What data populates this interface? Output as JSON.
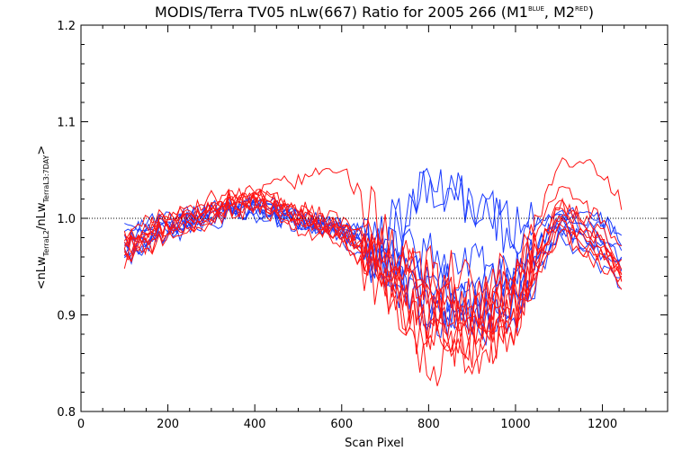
{
  "chart_data": {
    "type": "line",
    "title": {
      "main": "MODIS/Terra TV05 nLw(667) Ratio for 2005 266 (M1",
      "sup1": "BLUE",
      "mid": ", M2",
      "sup2": "RED",
      "end": ")"
    },
    "xlabel": "Scan Pixel",
    "ylabel": {
      "open": "<nLw",
      "sub1": "TerraL2",
      "mid": "/nLw",
      "sub2": "TerraL3:7DAY",
      "close": ">"
    },
    "xlim": [
      0,
      1350
    ],
    "ylim": [
      0.8,
      1.2
    ],
    "xticks": [
      0,
      200,
      400,
      600,
      800,
      1000,
      1200
    ],
    "yticks": [
      0.8,
      0.9,
      1.0,
      1.1,
      1.2
    ],
    "ytick_labels": [
      "0.8",
      "0.9",
      "1.0",
      "1.1",
      "1.2"
    ],
    "reference_line": 1.0,
    "colors": {
      "M1": "#1c3cff",
      "M2": "#ff1414",
      "reference": "#000000"
    },
    "series_groups": [
      {
        "name": "M1",
        "color": "#1c3cff",
        "x": [
          100,
          200,
          300,
          400,
          500,
          600,
          700,
          800,
          900,
          1000,
          1100,
          1200,
          1250
        ],
        "lines": [
          [
            0.975,
            0.995,
            1.005,
            1.01,
            0.995,
            0.985,
            0.95,
            0.93,
            0.92,
            0.93,
            0.985,
            0.975,
            0.95
          ],
          [
            0.96,
            0.985,
            1.0,
            1.015,
            1.0,
            0.99,
            0.96,
            0.92,
            0.9,
            0.92,
            0.99,
            0.96,
            0.93
          ],
          [
            0.985,
            1.0,
            1.01,
            1.005,
            0.99,
            0.995,
            0.97,
            1.03,
            1.02,
            0.98,
            1.005,
            1.0,
            0.975
          ],
          [
            0.97,
            0.99,
            1.0,
            1.02,
            1.005,
            0.995,
            0.985,
            1.04,
            1.01,
            0.99,
            1.01,
            0.99,
            0.96
          ],
          [
            0.965,
            0.98,
            0.995,
            1.01,
            1.0,
            0.98,
            0.94,
            0.9,
            0.9,
            0.91,
            0.99,
            0.97,
            0.94
          ],
          [
            0.98,
            0.99,
            1.01,
            1.015,
            0.995,
            0.985,
            0.96,
            0.94,
            0.92,
            0.94,
            1.0,
            0.98,
            0.955
          ],
          [
            0.955,
            0.985,
            1.0,
            1.005,
            0.995,
            0.99,
            0.95,
            0.91,
            0.89,
            0.905,
            0.98,
            0.95,
            0.925
          ],
          [
            0.99,
            1.0,
            1.005,
            1.015,
            1.0,
            0.99,
            0.975,
            0.96,
            0.95,
            0.95,
            1.0,
            1.0,
            0.97
          ]
        ]
      },
      {
        "name": "M2",
        "color": "#ff1414",
        "x": [
          100,
          200,
          300,
          400,
          500,
          600,
          700,
          800,
          900,
          1000,
          1100,
          1200,
          1250
        ],
        "lines": [
          [
            0.97,
            0.995,
            1.01,
            1.02,
            1.0,
            0.99,
            0.94,
            0.9,
            0.89,
            0.92,
            1.01,
            0.98,
            0.94
          ],
          [
            0.96,
            0.985,
            1.005,
            1.025,
            1.01,
            0.985,
            0.93,
            0.87,
            0.88,
            0.9,
            1.02,
            0.97,
            0.935
          ],
          [
            0.98,
            1.0,
            1.015,
            1.03,
            1.04,
            1.05,
            0.99,
            0.93,
            0.9,
            0.93,
            1.06,
            1.05,
            1.01
          ],
          [
            0.965,
            0.99,
            1.0,
            1.015,
            1.0,
            0.98,
            0.92,
            0.84,
            0.86,
            0.89,
            1.0,
            0.96,
            0.93
          ],
          [
            0.975,
            1.0,
            1.01,
            1.02,
            1.0,
            0.99,
            0.95,
            0.91,
            0.9,
            0.91,
            0.995,
            0.975,
            0.94
          ],
          [
            0.96,
            0.98,
            1.0,
            1.01,
            0.995,
            0.985,
            0.94,
            0.89,
            0.87,
            0.9,
            0.99,
            0.95,
            0.93
          ],
          [
            0.985,
            1.005,
            1.02,
            1.025,
            1.005,
            0.995,
            0.96,
            0.95,
            0.93,
            0.94,
            1.03,
            1.0,
            0.96
          ],
          [
            0.97,
            0.99,
            1.005,
            1.015,
            0.99,
            0.975,
            0.93,
            0.88,
            0.86,
            0.89,
            0.985,
            0.955,
            0.935
          ],
          [
            0.955,
            0.98,
            0.995,
            1.02,
            1.0,
            0.985,
            0.945,
            0.92,
            0.9,
            0.905,
            1.0,
            0.965,
            0.94
          ],
          [
            0.975,
            0.995,
            1.01,
            1.03,
            1.01,
            1.0,
            0.96,
            0.93,
            0.91,
            0.925,
            1.015,
            0.99,
            0.95
          ]
        ]
      }
    ]
  }
}
